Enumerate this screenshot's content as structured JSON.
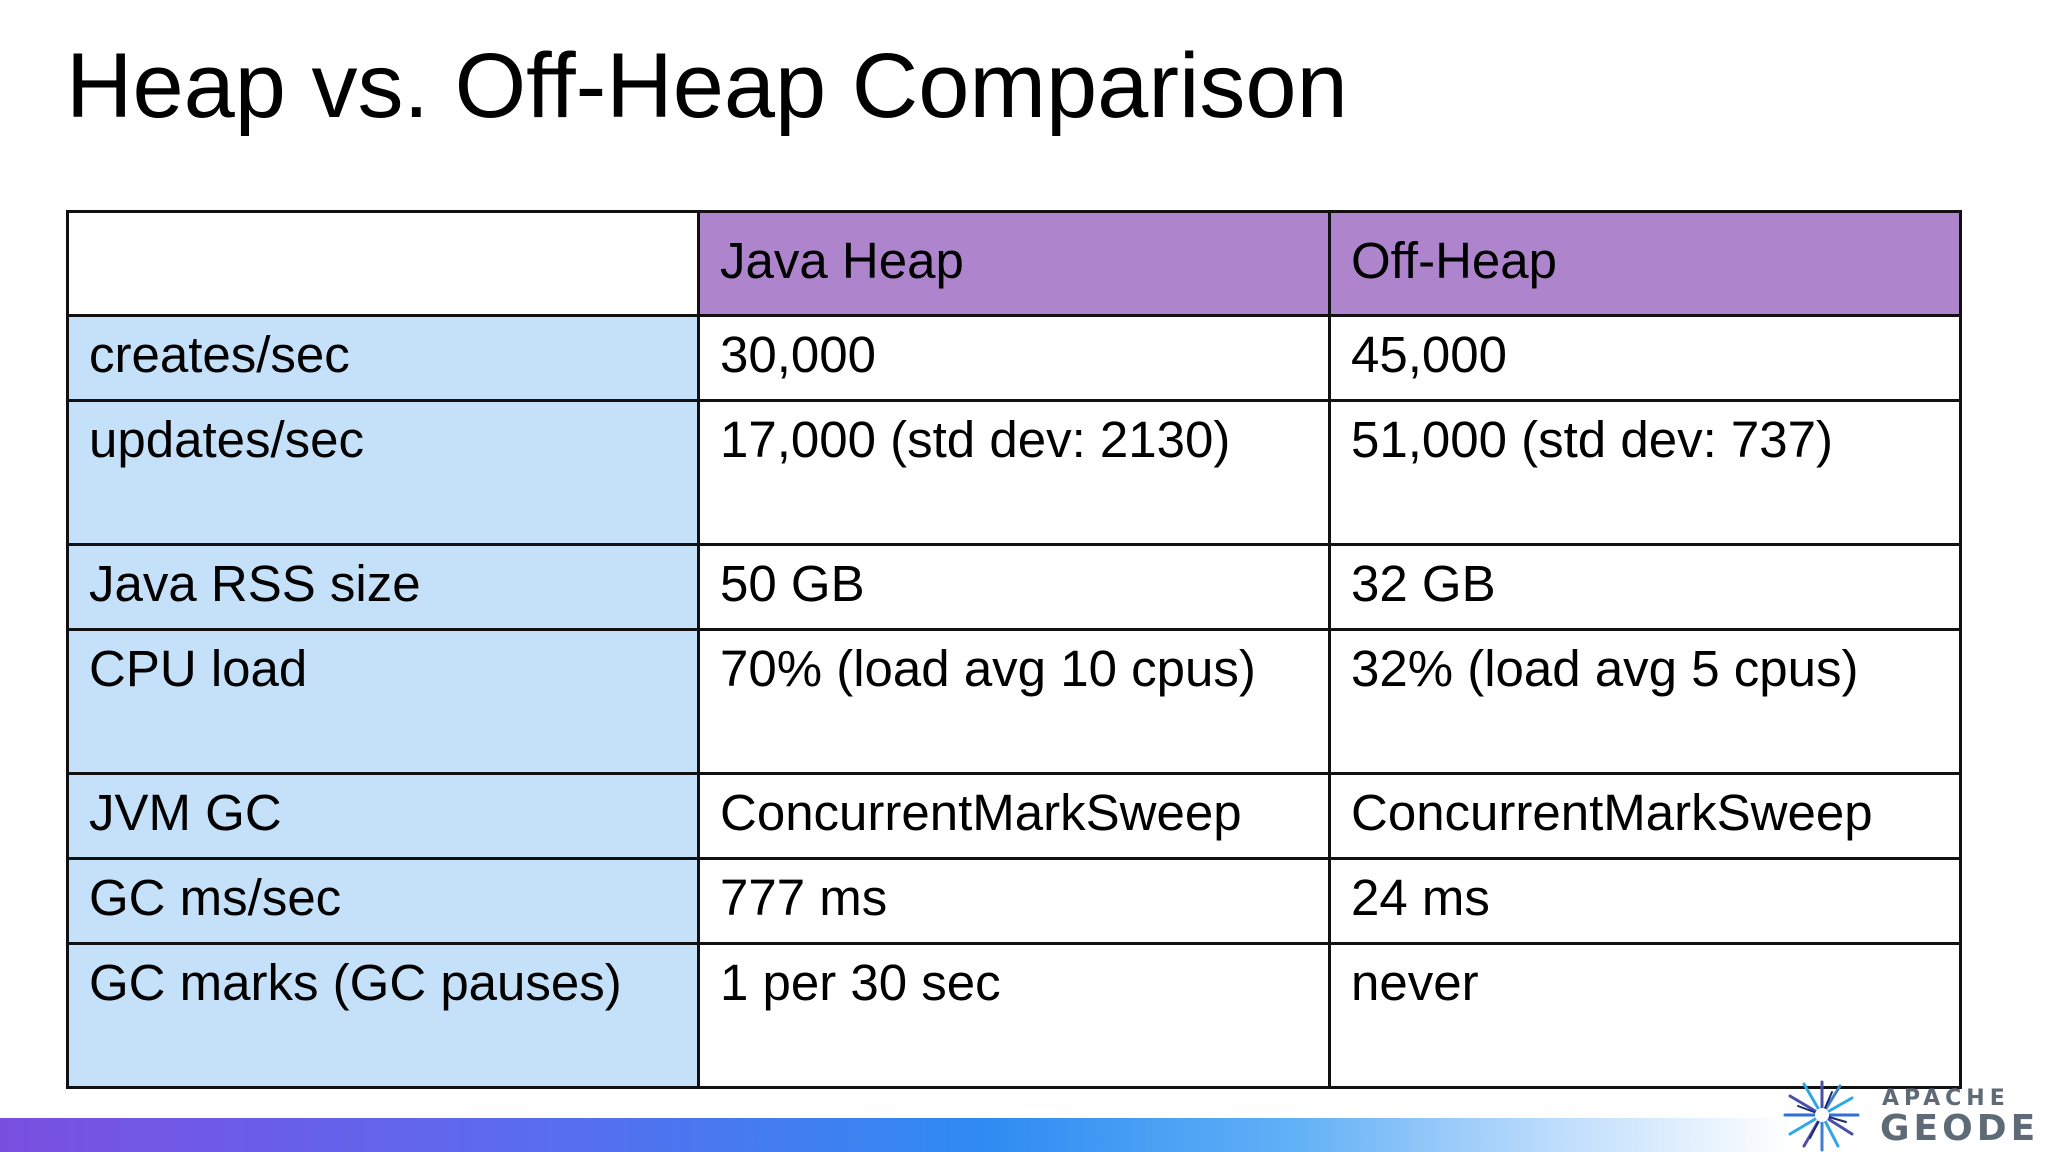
{
  "slide": {
    "title": "Heap vs. Off-Heap Comparison"
  },
  "table": {
    "corner": "",
    "headers": [
      "Java Heap",
      "Off-Heap"
    ],
    "rows": [
      {
        "label": "creates/sec",
        "java_heap": "30,000",
        "off_heap": "45,000"
      },
      {
        "label": "updates/sec",
        "java_heap": "17,000 (std dev: 2130)",
        "off_heap": "51,000 (std dev: 737)"
      },
      {
        "label": "Java RSS size",
        "java_heap": "50 GB",
        "off_heap": "32 GB"
      },
      {
        "label": "CPU load",
        "java_heap": "70% (load avg 10 cpus)",
        "off_heap": "32% (load avg 5 cpus)"
      },
      {
        "label": "JVM GC",
        "java_heap": "ConcurrentMarkSweep",
        "off_heap": "ConcurrentMarkSweep"
      },
      {
        "label": "GC ms/sec",
        "java_heap": "777 ms",
        "off_heap": "24 ms"
      },
      {
        "label": "GC marks (GC pauses)",
        "java_heap": "1 per 30 sec",
        "off_heap": "never"
      }
    ]
  },
  "colors": {
    "header_fill": "#ae84cc",
    "label_fill": "#c5e0f9",
    "band_start": "#7a4fe0",
    "band_end": "#b8dafb"
  },
  "logo": {
    "line1": "APACHE",
    "line2": "GEODE",
    "icon": "geode-starburst-icon"
  }
}
